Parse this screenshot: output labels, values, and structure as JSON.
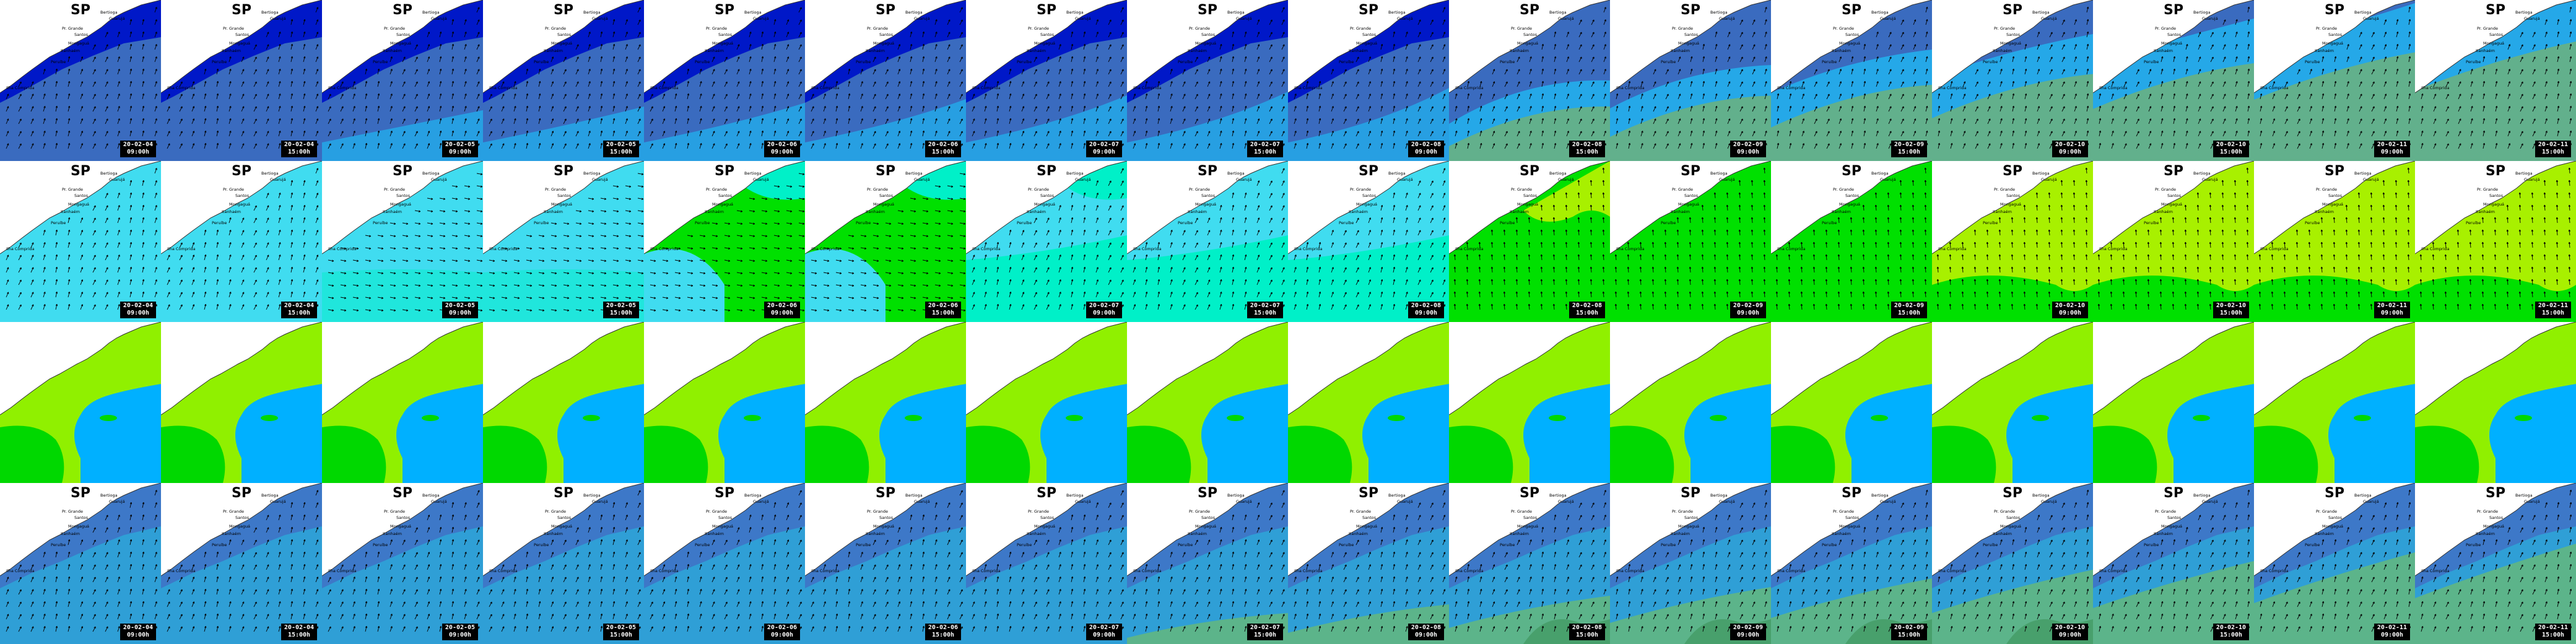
{
  "grid": {
    "rows": 4,
    "cols": 16
  },
  "map_label": "SP",
  "place_labels": [
    "Bertioga",
    "Guarujá",
    "Pr. Grande",
    "Santos",
    "Mongaguá",
    "Itanhaém",
    "Peruíbe",
    "Ilha Comprida"
  ],
  "timestamps": [
    {
      "date": "20-02-04",
      "time": "09:00h"
    },
    {
      "date": "20-02-04",
      "time": "15:00h"
    },
    {
      "date": "20-02-05",
      "time": "09:00h"
    },
    {
      "date": "20-02-05",
      "time": "15:00h"
    },
    {
      "date": "20-02-06",
      "time": "09:00h"
    },
    {
      "date": "20-02-06",
      "time": "15:00h"
    },
    {
      "date": "20-02-07",
      "time": "09:00h"
    },
    {
      "date": "20-02-07",
      "time": "15:00h"
    },
    {
      "date": "20-02-08",
      "time": "09:00h"
    },
    {
      "date": "20-02-08",
      "time": "15:00h"
    },
    {
      "date": "20-02-09",
      "time": "09:00h"
    },
    {
      "date": "20-02-09",
      "time": "15:00h"
    },
    {
      "date": "20-02-10",
      "time": "09:00h"
    },
    {
      "date": "20-02-10",
      "time": "15:00h"
    },
    {
      "date": "20-02-11",
      "time": "09:00h"
    },
    {
      "date": "20-02-11",
      "time": "15:00h"
    }
  ],
  "colors": {
    "row1_ocean": "#3a6bbf",
    "row1_nearshore": "#0018c8",
    "row1_offshore_light": "#25a8e8",
    "row1_offshore_green": "#62b08c",
    "row2_cyan": "#40dcf0",
    "row2_aqua": "#00f0c8",
    "row2_green": "#00e000",
    "row2_lime": "#a8f000",
    "row3_skyblue": "#00b0ff",
    "row3_lime": "#90f000",
    "row3_green": "#00d800",
    "row4_ocean": "#2f9fd6",
    "row4_coastal": "#3d78c8",
    "row4_green": "#5cb48a",
    "row4_darkgreen": "#48a06c",
    "land": "#ffffff",
    "badge_bg": "#000000"
  },
  "legend_icons": [
    "wind-arrow-icon"
  ]
}
